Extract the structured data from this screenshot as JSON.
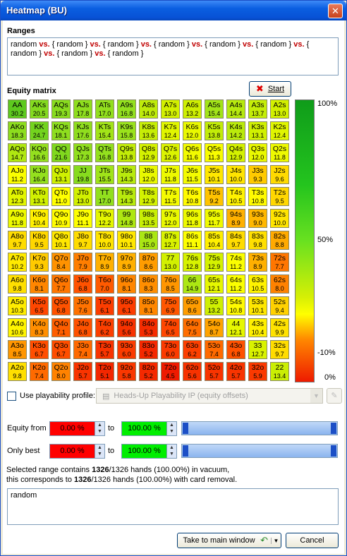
{
  "window": {
    "title": "Heatmap (BU)",
    "close_label": "✕"
  },
  "ranges": {
    "label": "Ranges",
    "content": [
      "random",
      " vs. ",
      "{ random }",
      " vs. ",
      "{ random }",
      " vs. ",
      "{ random }",
      " vs. ",
      "{ random }",
      " vs. ",
      "{ random }",
      " vs. ",
      "{ random }",
      " vs. ",
      "{ random }",
      " vs. ",
      "{ random }"
    ]
  },
  "equity_matrix": {
    "label": "Equity matrix",
    "start_label": "Start",
    "rows": [
      [
        [
          "AA",
          "30.2"
        ],
        [
          "AKs",
          "20.5"
        ],
        [
          "AQs",
          "19.3"
        ],
        [
          "AJs",
          "17.8"
        ],
        [
          "ATs",
          "17.0"
        ],
        [
          "A9s",
          "16.8"
        ],
        [
          "A8s",
          "14.0"
        ],
        [
          "A7s",
          "13.0"
        ],
        [
          "A6s",
          "13.2"
        ],
        [
          "A5s",
          "15.4"
        ],
        [
          "A4s",
          "14.4"
        ],
        [
          "A3s",
          "13.7"
        ],
        [
          "A2s",
          "13.0"
        ]
      ],
      [
        [
          "AKo",
          "18.3"
        ],
        [
          "KK",
          "24.7"
        ],
        [
          "KQs",
          "18.1"
        ],
        [
          "KJs",
          "17.6"
        ],
        [
          "KTs",
          "15.4"
        ],
        [
          "K9s",
          "15.8"
        ],
        [
          "K8s",
          "13.6"
        ],
        [
          "K7s",
          "12.4"
        ],
        [
          "K6s",
          "12.0"
        ],
        [
          "K5s",
          "13.8"
        ],
        [
          "K4s",
          "14.2"
        ],
        [
          "K3s",
          "13.1"
        ],
        [
          "K2s",
          "12.4"
        ]
      ],
      [
        [
          "AQo",
          "14.7"
        ],
        [
          "KQo",
          "16.6"
        ],
        [
          "QQ",
          "21.6"
        ],
        [
          "QJs",
          "17.3"
        ],
        [
          "QTs",
          "16.8"
        ],
        [
          "Q9s",
          "13.8"
        ],
        [
          "Q8s",
          "12.9"
        ],
        [
          "Q7s",
          "12.6"
        ],
        [
          "Q6s",
          "11.6"
        ],
        [
          "Q5s",
          "11.3"
        ],
        [
          "Q4s",
          "12.9"
        ],
        [
          "Q3s",
          "12.0"
        ],
        [
          "Q2s",
          "11.8"
        ]
      ],
      [
        [
          "AJo",
          "11.2"
        ],
        [
          "KJo",
          "16.4"
        ],
        [
          "QJo",
          "13.1"
        ],
        [
          "JJ",
          "19.8"
        ],
        [
          "JTs",
          "15.5"
        ],
        [
          "J9s",
          "14.3"
        ],
        [
          "J8s",
          "12.0"
        ],
        [
          "J7s",
          "11.8"
        ],
        [
          "J6s",
          "11.5"
        ],
        [
          "J5s",
          "10.1"
        ],
        [
          "J4s",
          "10.0"
        ],
        [
          "J3s",
          "9.3"
        ],
        [
          "J2s",
          "9.6"
        ]
      ],
      [
        [
          "ATo",
          "12.3"
        ],
        [
          "KTo",
          "13.1"
        ],
        [
          "QTo",
          "11.0"
        ],
        [
          "JTo",
          "13.0"
        ],
        [
          "TT",
          "17.0"
        ],
        [
          "T9s",
          "14.3"
        ],
        [
          "T8s",
          "12.9"
        ],
        [
          "T7s",
          "11.5"
        ],
        [
          "T6s",
          "10.8"
        ],
        [
          "T5s",
          "9.2"
        ],
        [
          "T4s",
          "10.5"
        ],
        [
          "T3s",
          "10.8"
        ],
        [
          "T2s",
          "9.5"
        ]
      ],
      [
        [
          "A9o",
          "11.8"
        ],
        [
          "K9o",
          "10.4"
        ],
        [
          "Q9o",
          "10.9"
        ],
        [
          "J9o",
          "11.1"
        ],
        [
          "T9o",
          "12.2"
        ],
        [
          "99",
          "14.8"
        ],
        [
          "98s",
          "13.5"
        ],
        [
          "97s",
          "12.0"
        ],
        [
          "96s",
          "11.8"
        ],
        [
          "95s",
          "11.7"
        ],
        [
          "94s",
          "8.9"
        ],
        [
          "93s",
          "9.0"
        ],
        [
          "92s",
          "10.0"
        ]
      ],
      [
        [
          "A8o",
          "9.7"
        ],
        [
          "K8o",
          "9.5"
        ],
        [
          "Q8o",
          "10.1"
        ],
        [
          "J8o",
          "9.7"
        ],
        [
          "T8o",
          "10.0"
        ],
        [
          "98o",
          "10.1"
        ],
        [
          "88",
          "15.0"
        ],
        [
          "87s",
          "12.7"
        ],
        [
          "86s",
          "11.1"
        ],
        [
          "85s",
          "10.4"
        ],
        [
          "84s",
          "9.7"
        ],
        [
          "83s",
          "9.8"
        ],
        [
          "82s",
          "8.8"
        ]
      ],
      [
        [
          "A7o",
          "10.2"
        ],
        [
          "K7o",
          "9.3"
        ],
        [
          "Q7o",
          "8.4"
        ],
        [
          "J7o",
          "7.9"
        ],
        [
          "T7o",
          "8.9"
        ],
        [
          "97o",
          "8.9"
        ],
        [
          "87o",
          "8.6"
        ],
        [
          "77",
          "13.0"
        ],
        [
          "76s",
          "12.8"
        ],
        [
          "75s",
          "12.9"
        ],
        [
          "74s",
          "11.2"
        ],
        [
          "73s",
          "8.9"
        ],
        [
          "72s",
          "7.7"
        ]
      ],
      [
        [
          "A6o",
          "9.8"
        ],
        [
          "K6o",
          "8.1"
        ],
        [
          "Q6o",
          "7.7"
        ],
        [
          "J6o",
          "6.8"
        ],
        [
          "T6o",
          "7.0"
        ],
        [
          "96o",
          "8.1"
        ],
        [
          "86o",
          "8.3"
        ],
        [
          "76o",
          "8.5"
        ],
        [
          "66",
          "14.9"
        ],
        [
          "65s",
          "12.1"
        ],
        [
          "64s",
          "11.2"
        ],
        [
          "63s",
          "10.5"
        ],
        [
          "62s",
          "8.0"
        ]
      ],
      [
        [
          "A5o",
          "10.3"
        ],
        [
          "K5o",
          "6.5"
        ],
        [
          "Q5o",
          "6.8"
        ],
        [
          "J5o",
          "7.6"
        ],
        [
          "T5o",
          "6.1"
        ],
        [
          "95o",
          "6.1"
        ],
        [
          "85o",
          "8.1"
        ],
        [
          "75o",
          "6.9"
        ],
        [
          "65o",
          "8.6"
        ],
        [
          "55",
          "13.2"
        ],
        [
          "54s",
          "10.8"
        ],
        [
          "53s",
          "10.1"
        ],
        [
          "52s",
          "9.4"
        ]
      ],
      [
        [
          "A4o",
          "10.6"
        ],
        [
          "K4o",
          "8.3"
        ],
        [
          "Q4o",
          "7.1"
        ],
        [
          "J4o",
          "6.8"
        ],
        [
          "T4o",
          "6.2"
        ],
        [
          "94o",
          "5.6"
        ],
        [
          "84o",
          "5.3"
        ],
        [
          "74o",
          "6.5"
        ],
        [
          "64o",
          "7.5"
        ],
        [
          "54o",
          "8.7"
        ],
        [
          "44",
          "12.1"
        ],
        [
          "43s",
          "10.4"
        ],
        [
          "42s",
          "9.9"
        ]
      ],
      [
        [
          "A3o",
          "8.5"
        ],
        [
          "K3o",
          "6.7"
        ],
        [
          "Q3o",
          "6.7"
        ],
        [
          "J3o",
          "7.4"
        ],
        [
          "T3o",
          "5.7"
        ],
        [
          "93o",
          "6.0"
        ],
        [
          "83o",
          "5.2"
        ],
        [
          "73o",
          "6.0"
        ],
        [
          "63o",
          "6.2"
        ],
        [
          "53o",
          "7.4"
        ],
        [
          "43o",
          "6.8"
        ],
        [
          "33",
          "12.7"
        ],
        [
          "32s",
          "9.7"
        ]
      ],
      [
        [
          "A2o",
          "9.8"
        ],
        [
          "K2o",
          "7.4"
        ],
        [
          "Q2o",
          "8.0"
        ],
        [
          "J2o",
          "5.7"
        ],
        [
          "T2o",
          "5.1"
        ],
        [
          "92o",
          "5.8"
        ],
        [
          "82o",
          "5.2"
        ],
        [
          "72o",
          "4.5"
        ],
        [
          "62o",
          "5.6"
        ],
        [
          "52o",
          "5.7"
        ],
        [
          "42o",
          "5.7"
        ],
        [
          "32o",
          "5.9"
        ],
        [
          "22",
          "13.4"
        ]
      ]
    ]
  },
  "scale": {
    "top": "100%",
    "mid": "50%",
    "low": "-10%",
    "bottom": "0%"
  },
  "playability": {
    "label": "Use playability profile:",
    "profile": "Heads-Up Playability IP  (equity offsets)"
  },
  "equity_from": {
    "label": "Equity from",
    "from": "0.00 %",
    "to_label": "to",
    "to": "100.00 %"
  },
  "only_best": {
    "label": "Only best",
    "from": "0.00 %",
    "to_label": "to",
    "to": "100.00 %"
  },
  "summary": {
    "line1a": "Selected range contains ",
    "line1b": "1326",
    "line1c": "/1326 hands (100.00%) in vacuum,",
    "line2a": "this corresponds to ",
    "line2b": "1326",
    "line2c": "/1326 hands (100.00%) with card removal."
  },
  "memo": {
    "text": "random"
  },
  "buttons": {
    "main": "Take to main window",
    "cancel": "Cancel"
  }
}
